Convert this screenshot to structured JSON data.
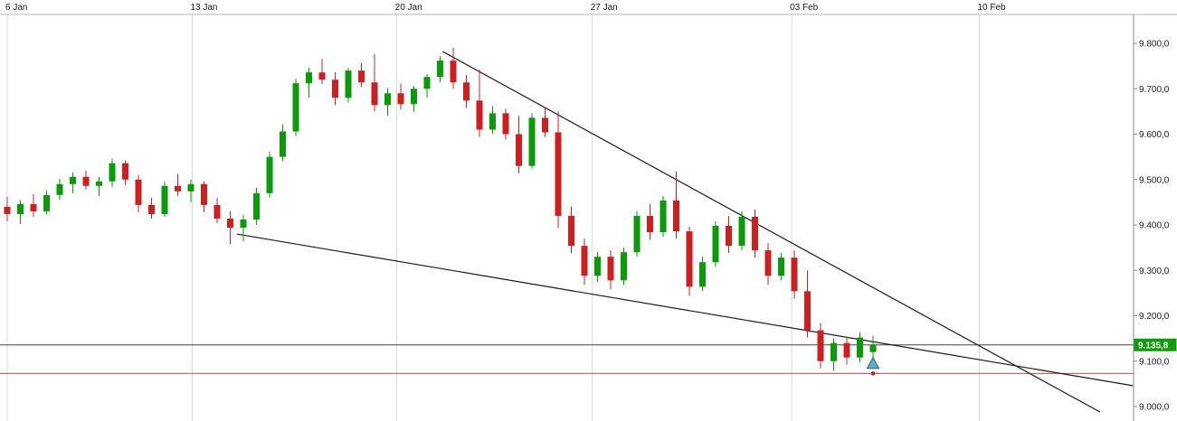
{
  "chart_data": {
    "type": "candlestick",
    "title": "",
    "ylim": [
      9000,
      9800
    ],
    "grid": "vertical-weekly",
    "colors": {
      "up": "#0a9a0a",
      "down": "#cc2020",
      "gridline": "#d9d9d9",
      "top_rule": "#b5b5b5",
      "axis_line": "#8a8a8a",
      "label_text": "#1a1a1a",
      "trendline": "#1a1a1a",
      "last_price_line": "#444444",
      "alert_line": "#cc4a4a",
      "badge_bg": "#0f9d0f",
      "badge_text": "#ffffff",
      "marker_fill": "#5fb0c7",
      "marker_stroke": "#23647e",
      "dot_fill": "#cc2020"
    },
    "x_axis": {
      "labels": [
        {
          "label": "6 Jan",
          "index": 0
        },
        {
          "label": "13 Jan",
          "index": 14.1
        },
        {
          "label": "20 Jan",
          "index": 29.7
        },
        {
          "label": "27 Jan",
          "index": 44.6
        },
        {
          "label": "03 Feb",
          "index": 59.8
        },
        {
          "label": "10 Feb",
          "index": 74.1
        }
      ]
    },
    "y_axis": {
      "ticks": [
        {
          "price": 9800,
          "label": "9.800,0"
        },
        {
          "price": 9700,
          "label": "9.700,0"
        },
        {
          "price": 9600,
          "label": "9.600,0"
        },
        {
          "price": 9500,
          "label": "9.500,0"
        },
        {
          "price": 9400,
          "label": "9.400,0"
        },
        {
          "price": 9300,
          "label": "9.300,0"
        },
        {
          "price": 9200,
          "label": "9.200,0"
        },
        {
          "price": 9100,
          "label": "9.100,0"
        },
        {
          "price": 9000,
          "label": "9.000,0"
        }
      ]
    },
    "last_price": {
      "value": 9135.8,
      "label": "9.135,8"
    },
    "hlines": [
      {
        "name": "last-price-line",
        "price": 9135.8,
        "color_key": "last_price_line"
      },
      {
        "name": "alert-line",
        "price": 9073,
        "color_key": "alert_line"
      }
    ],
    "trendlines": [
      {
        "name": "upper-descending-trendline",
        "from_index": 33.2,
        "from_price": 9782,
        "to_index": 83.3,
        "to_price": 8988
      },
      {
        "name": "lower-descending-trendline",
        "from_index": 17.5,
        "from_price": 9380,
        "to_index": 85.8,
        "to_price": 9046
      }
    ],
    "markers": [
      {
        "name": "buy-arrow-marker",
        "shape": "triangle-up",
        "index": 66,
        "price": 9112
      },
      {
        "name": "alert-dot-marker",
        "shape": "dot",
        "index": 66,
        "price": 9073
      }
    ],
    "candles": [
      [
        9440,
        9462,
        9408,
        9424
      ],
      [
        9424,
        9455,
        9402,
        9446
      ],
      [
        9446,
        9468,
        9418,
        9430
      ],
      [
        9430,
        9476,
        9424,
        9466
      ],
      [
        9466,
        9502,
        9455,
        9490
      ],
      [
        9490,
        9516,
        9470,
        9506
      ],
      [
        9506,
        9520,
        9478,
        9486
      ],
      [
        9486,
        9506,
        9464,
        9496
      ],
      [
        9496,
        9546,
        9484,
        9536
      ],
      [
        9536,
        9542,
        9488,
        9500
      ],
      [
        9500,
        9510,
        9428,
        9444
      ],
      [
        9444,
        9460,
        9414,
        9424
      ],
      [
        9424,
        9496,
        9418,
        9486
      ],
      [
        9486,
        9512,
        9464,
        9474
      ],
      [
        9474,
        9500,
        9450,
        9490
      ],
      [
        9490,
        9496,
        9428,
        9444
      ],
      [
        9444,
        9460,
        9404,
        9414
      ],
      [
        9414,
        9430,
        9358,
        9394
      ],
      [
        9394,
        9422,
        9364,
        9412
      ],
      [
        9412,
        9482,
        9400,
        9470
      ],
      [
        9470,
        9562,
        9460,
        9550
      ],
      [
        9550,
        9622,
        9540,
        9606
      ],
      [
        9606,
        9722,
        9596,
        9712
      ],
      [
        9712,
        9746,
        9680,
        9736
      ],
      [
        9736,
        9766,
        9710,
        9720
      ],
      [
        9720,
        9736,
        9664,
        9680
      ],
      [
        9680,
        9746,
        9670,
        9740
      ],
      [
        9740,
        9756,
        9704,
        9714
      ],
      [
        9714,
        9776,
        9650,
        9664
      ],
      [
        9664,
        9702,
        9640,
        9690
      ],
      [
        9690,
        9712,
        9654,
        9666
      ],
      [
        9666,
        9706,
        9650,
        9700
      ],
      [
        9700,
        9732,
        9680,
        9726
      ],
      [
        9726,
        9772,
        9714,
        9762
      ],
      [
        9762,
        9790,
        9700,
        9714
      ],
      [
        9714,
        9730,
        9658,
        9674
      ],
      [
        9674,
        9742,
        9594,
        9610
      ],
      [
        9610,
        9662,
        9600,
        9646
      ],
      [
        9646,
        9656,
        9588,
        9600
      ],
      [
        9600,
        9640,
        9514,
        9530
      ],
      [
        9530,
        9646,
        9524,
        9636
      ],
      [
        9636,
        9660,
        9594,
        9604
      ],
      [
        9604,
        9650,
        9394,
        9420
      ],
      [
        9420,
        9440,
        9338,
        9354
      ],
      [
        9354,
        9370,
        9268,
        9288
      ],
      [
        9288,
        9340,
        9274,
        9330
      ],
      [
        9330,
        9344,
        9258,
        9278
      ],
      [
        9278,
        9350,
        9268,
        9340
      ],
      [
        9340,
        9430,
        9330,
        9420
      ],
      [
        9420,
        9446,
        9368,
        9384
      ],
      [
        9384,
        9464,
        9374,
        9454
      ],
      [
        9454,
        9518,
        9370,
        9386
      ],
      [
        9386,
        9396,
        9244,
        9264
      ],
      [
        9264,
        9330,
        9254,
        9318
      ],
      [
        9318,
        9408,
        9308,
        9398
      ],
      [
        9398,
        9420,
        9338,
        9354
      ],
      [
        9354,
        9430,
        9344,
        9418
      ],
      [
        9418,
        9434,
        9328,
        9344
      ],
      [
        9344,
        9360,
        9268,
        9288
      ],
      [
        9288,
        9338,
        9278,
        9328
      ],
      [
        9328,
        9344,
        9238,
        9254
      ],
      [
        9254,
        9300,
        9152,
        9168
      ],
      [
        9168,
        9184,
        9084,
        9100
      ],
      [
        9100,
        9150,
        9078,
        9140
      ],
      [
        9140,
        9154,
        9092,
        9108
      ],
      [
        9108,
        9164,
        9098,
        9152
      ],
      [
        9120,
        9156,
        9108,
        9135.8
      ]
    ]
  }
}
